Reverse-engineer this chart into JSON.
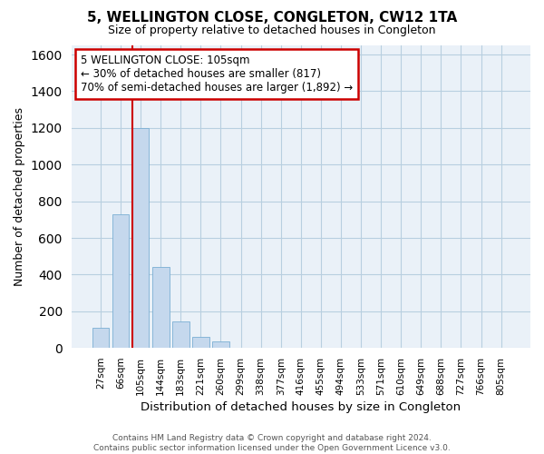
{
  "title": "5, WELLINGTON CLOSE, CONGLETON, CW12 1TA",
  "subtitle": "Size of property relative to detached houses in Congleton",
  "xlabel": "Distribution of detached houses by size in Congleton",
  "ylabel": "Number of detached properties",
  "footer_line1": "Contains HM Land Registry data © Crown copyright and database right 2024.",
  "footer_line2": "Contains public sector information licensed under the Open Government Licence v3.0.",
  "bin_labels": [
    "27sqm",
    "66sqm",
    "105sqm",
    "144sqm",
    "183sqm",
    "221sqm",
    "260sqm",
    "299sqm",
    "338sqm",
    "377sqm",
    "416sqm",
    "455sqm",
    "494sqm",
    "533sqm",
    "571sqm",
    "610sqm",
    "649sqm",
    "688sqm",
    "727sqm",
    "766sqm",
    "805sqm"
  ],
  "bar_heights": [
    110,
    730,
    1200,
    440,
    145,
    60,
    35,
    0,
    0,
    0,
    0,
    0,
    0,
    0,
    0,
    0,
    0,
    0,
    0,
    0,
    0
  ],
  "bar_color": "#c5d8ed",
  "bar_edge_color": "#7aafd4",
  "highlight_bar_index": 2,
  "highlight_line_color": "#cc0000",
  "ylim": [
    0,
    1650
  ],
  "yticks": [
    0,
    200,
    400,
    600,
    800,
    1000,
    1200,
    1400,
    1600
  ],
  "annotation_line1": "5 WELLINGTON CLOSE: 105sqm",
  "annotation_line2": "← 30% of detached houses are smaller (817)",
  "annotation_line3": "70% of semi-detached houses are larger (1,892) →",
  "annotation_box_color": "#ffffff",
  "annotation_box_edgecolor": "#cc0000",
  "bg_color": "#e8f0f8",
  "plot_bg_color": "#eaf1f8"
}
